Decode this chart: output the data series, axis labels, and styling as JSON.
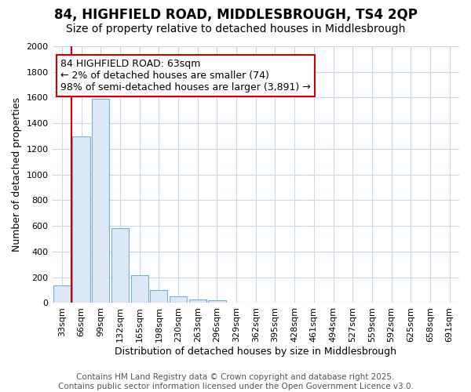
{
  "title_line1": "84, HIGHFIELD ROAD, MIDDLESBROUGH, TS4 2QP",
  "title_line2": "Size of property relative to detached houses in Middlesbrough",
  "xlabel": "Distribution of detached houses by size in Middlesbrough",
  "ylabel": "Number of detached properties",
  "bar_color": "#dce8f5",
  "bar_edge_color": "#7badd4",
  "categories": [
    "33sqm",
    "66sqm",
    "99sqm",
    "132sqm",
    "165sqm",
    "198sqm",
    "230sqm",
    "263sqm",
    "296sqm",
    "329sqm",
    "362sqm",
    "395sqm",
    "428sqm",
    "461sqm",
    "494sqm",
    "527sqm",
    "559sqm",
    "592sqm",
    "625sqm",
    "658sqm",
    "691sqm"
  ],
  "values": [
    140,
    1300,
    1590,
    580,
    215,
    100,
    50,
    25,
    20,
    0,
    0,
    0,
    0,
    0,
    0,
    0,
    0,
    0,
    0,
    0,
    0
  ],
  "vline_x_index": 0.5,
  "annotation_text": "84 HIGHFIELD ROAD: 63sqm\n← 2% of detached houses are smaller (74)\n98% of semi-detached houses are larger (3,891) →",
  "annotation_box_color": "#ffffff",
  "annotation_box_edge": "#cc0000",
  "vline_color": "#cc0000",
  "ylim": [
    0,
    2000
  ],
  "yticks": [
    0,
    200,
    400,
    600,
    800,
    1000,
    1200,
    1400,
    1600,
    1800,
    2000
  ],
  "footer_line1": "Contains HM Land Registry data © Crown copyright and database right 2025.",
  "footer_line2": "Contains public sector information licensed under the Open Government Licence v3.0.",
  "bg_color": "#ffffff",
  "grid_color": "#c8d8ea",
  "title_fontsize": 12,
  "subtitle_fontsize": 10,
  "axis_label_fontsize": 9,
  "tick_fontsize": 8,
  "annotation_fontsize": 9,
  "footer_fontsize": 7.5
}
